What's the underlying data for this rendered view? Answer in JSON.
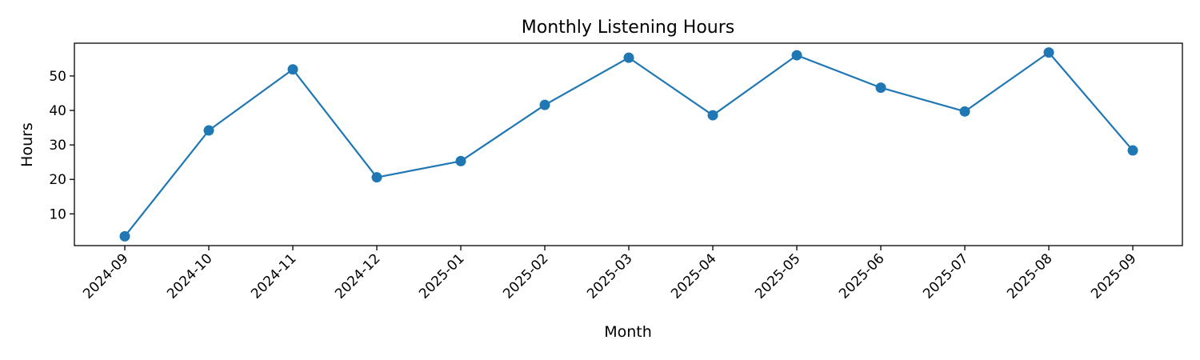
{
  "chart_data": {
    "type": "line",
    "title": "Monthly Listening Hours",
    "xlabel": "Month",
    "ylabel": "Hours",
    "categories": [
      "2024-09",
      "2024-10",
      "2024-11",
      "2024-12",
      "2025-01",
      "2025-02",
      "2025-03",
      "2025-04",
      "2025-05",
      "2025-06",
      "2025-07",
      "2025-08",
      "2025-09"
    ],
    "series": [
      {
        "values": [
          3.5,
          34.2,
          51.9,
          20.6,
          25.3,
          41.6,
          55.3,
          38.6,
          56.0,
          46.6,
          39.7,
          56.8,
          28.4
        ],
        "color": "#1f77b4",
        "marker": "circle"
      }
    ],
    "yticks": [
      10,
      20,
      30,
      40,
      50
    ],
    "ylim": [
      0.8,
      59.5
    ],
    "grid": false,
    "legend": "none"
  }
}
